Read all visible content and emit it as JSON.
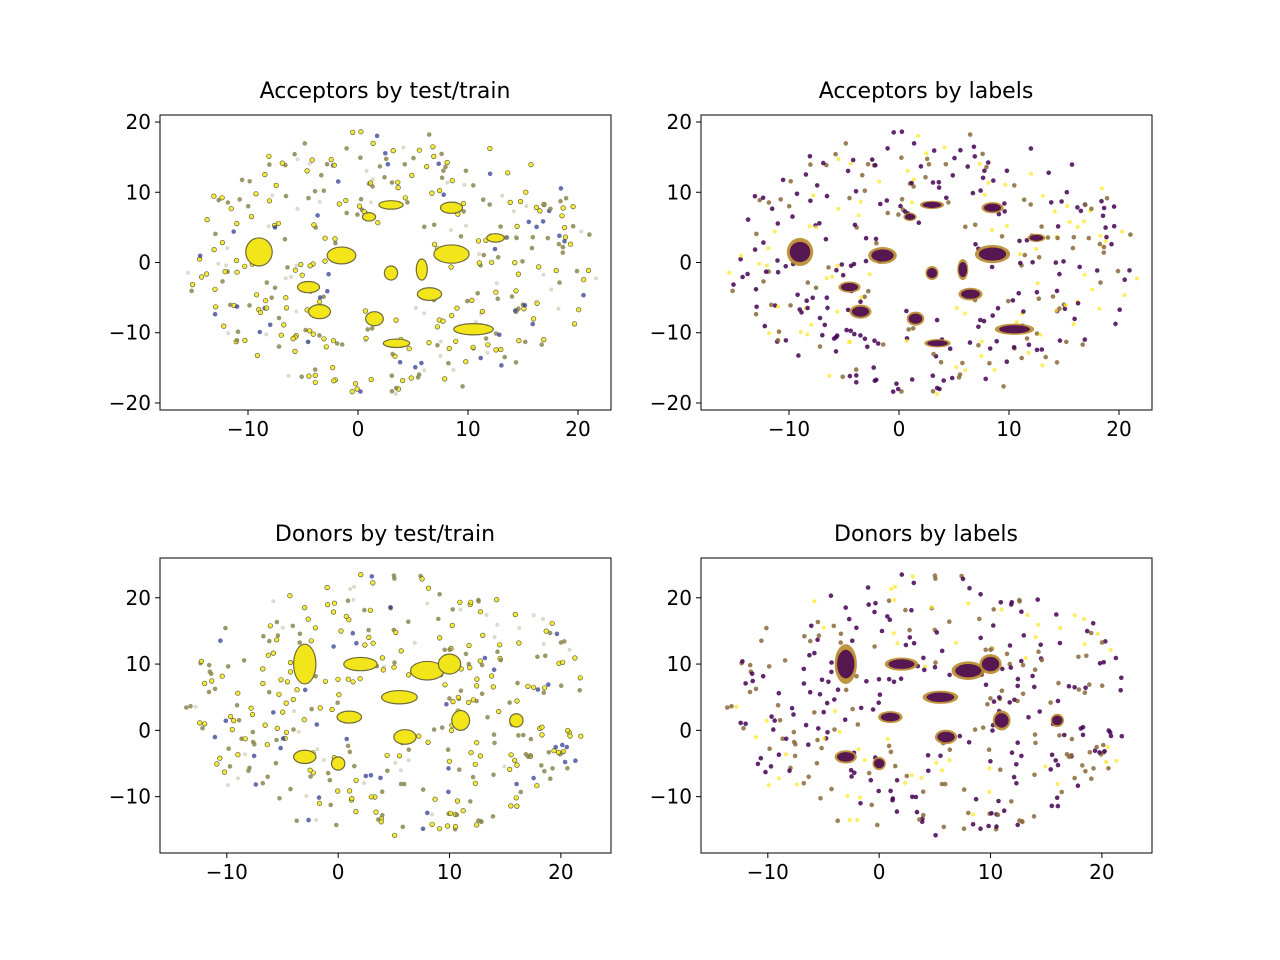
{
  "chart_data": [
    {
      "type": "scatter",
      "title": "Acceptors by test/train",
      "xlim": [
        -18,
        23
      ],
      "ylim": [
        -21,
        21
      ],
      "xticks": [
        -10,
        0,
        10,
        20
      ],
      "yticks": [
        -20,
        -10,
        0,
        10,
        20
      ],
      "tick_labels_x": [
        "−10",
        "0",
        "10",
        "20"
      ],
      "tick_labels_y": [
        "−20",
        "−10",
        "0",
        "10",
        "20"
      ],
      "colors": {
        "primary": "#f2e61a",
        "secondary": "#23308c",
        "mixed": "#8b8650",
        "edge": "#4a4a2a"
      },
      "clusters": [
        {
          "x": -9,
          "y": 1.5,
          "rx": 1.2,
          "ry": 2.0
        },
        {
          "x": -1.5,
          "y": 1,
          "rx": 1.3,
          "ry": 1.2
        },
        {
          "x": 8.5,
          "y": 1.2,
          "rx": 1.6,
          "ry": 1.3
        },
        {
          "x": -4.5,
          "y": -3.5,
          "rx": 1.0,
          "ry": 0.8
        },
        {
          "x": 6.5,
          "y": -4.5,
          "rx": 1.1,
          "ry": 0.9
        },
        {
          "x": -3.5,
          "y": -7,
          "rx": 1.0,
          "ry": 1.0
        },
        {
          "x": 1.5,
          "y": -8,
          "rx": 0.8,
          "ry": 1.0
        },
        {
          "x": 3,
          "y": 8.2,
          "rx": 1.1,
          "ry": 0.6
        },
        {
          "x": 8.5,
          "y": 7.8,
          "rx": 1.0,
          "ry": 0.8
        },
        {
          "x": 10.5,
          "y": -9.5,
          "rx": 1.8,
          "ry": 0.8
        },
        {
          "x": 3.5,
          "y": -11.5,
          "rx": 1.2,
          "ry": 0.6
        },
        {
          "x": 5.8,
          "y": -1,
          "rx": 0.5,
          "ry": 1.5
        },
        {
          "x": 12.5,
          "y": 3.5,
          "rx": 0.8,
          "ry": 0.6
        },
        {
          "x": 1,
          "y": 6.5,
          "rx": 0.6,
          "ry": 0.6
        },
        {
          "x": 3,
          "y": -1.5,
          "rx": 0.6,
          "ry": 1.0
        }
      ],
      "n_scatter": 380,
      "seed": 11,
      "mode": "testtrain"
    },
    {
      "type": "scatter",
      "title": "Acceptors by labels",
      "xlim": [
        -18,
        23
      ],
      "ylim": [
        -21,
        21
      ],
      "xticks": [
        -10,
        0,
        10,
        20
      ],
      "yticks": [
        -20,
        -10,
        0,
        10,
        20
      ],
      "tick_labels_x": [
        "−10",
        "0",
        "10",
        "20"
      ],
      "tick_labels_y": [
        "−20",
        "−10",
        "0",
        "10",
        "20"
      ],
      "colors": {
        "primary": "#fde725",
        "secondary": "#440154",
        "mixed": "#8a6a3a",
        "edge": "#b88a2a"
      },
      "clusters": [
        {
          "x": -9,
          "y": 1.5,
          "rx": 1.2,
          "ry": 2.0
        },
        {
          "x": -1.5,
          "y": 1,
          "rx": 1.3,
          "ry": 1.2
        },
        {
          "x": 8.5,
          "y": 1.2,
          "rx": 1.6,
          "ry": 1.3
        },
        {
          "x": -4.5,
          "y": -3.5,
          "rx": 1.0,
          "ry": 0.8
        },
        {
          "x": 6.5,
          "y": -4.5,
          "rx": 1.1,
          "ry": 0.9
        },
        {
          "x": -3.5,
          "y": -7,
          "rx": 1.0,
          "ry": 1.0
        },
        {
          "x": 1.5,
          "y": -8,
          "rx": 0.8,
          "ry": 1.0
        },
        {
          "x": 3,
          "y": 8.2,
          "rx": 1.1,
          "ry": 0.6
        },
        {
          "x": 8.5,
          "y": 7.8,
          "rx": 1.0,
          "ry": 0.8
        },
        {
          "x": 10.5,
          "y": -9.5,
          "rx": 1.8,
          "ry": 0.8
        },
        {
          "x": 3.5,
          "y": -11.5,
          "rx": 1.2,
          "ry": 0.6
        },
        {
          "x": 5.8,
          "y": -1,
          "rx": 0.5,
          "ry": 1.5
        },
        {
          "x": 12.5,
          "y": 3.5,
          "rx": 0.8,
          "ry": 0.6
        },
        {
          "x": 1,
          "y": 6.5,
          "rx": 0.6,
          "ry": 0.6
        },
        {
          "x": 3,
          "y": -1.5,
          "rx": 0.6,
          "ry": 1.0
        }
      ],
      "n_scatter": 380,
      "seed": 11,
      "mode": "labels"
    },
    {
      "type": "scatter",
      "title": "Donors by test/train",
      "xlim": [
        -16,
        24.5
      ],
      "ylim": [
        -18.5,
        26
      ],
      "xticks": [
        -10,
        0,
        10,
        20
      ],
      "yticks": [
        -10,
        0,
        10,
        20
      ],
      "tick_labels_x": [
        "−10",
        "0",
        "10",
        "20"
      ],
      "tick_labels_y": [
        "−10",
        "0",
        "10",
        "20"
      ],
      "colors": {
        "primary": "#f2e61a",
        "secondary": "#23308c",
        "mixed": "#8b8650",
        "edge": "#4a4a2a"
      },
      "clusters": [
        {
          "x": -3,
          "y": 10,
          "rx": 1.0,
          "ry": 3.0
        },
        {
          "x": 2,
          "y": 10,
          "rx": 1.5,
          "ry": 1.0
        },
        {
          "x": 8,
          "y": 9,
          "rx": 1.5,
          "ry": 1.4
        },
        {
          "x": 5.5,
          "y": 5,
          "rx": 1.6,
          "ry": 1.0
        },
        {
          "x": 1,
          "y": 2,
          "rx": 1.1,
          "ry": 0.9
        },
        {
          "x": 6,
          "y": -1,
          "rx": 1.0,
          "ry": 1.1
        },
        {
          "x": 11,
          "y": 1.5,
          "rx": 0.8,
          "ry": 1.5
        },
        {
          "x": 16,
          "y": 1.5,
          "rx": 0.6,
          "ry": 1.0
        },
        {
          "x": -3,
          "y": -4,
          "rx": 1.0,
          "ry": 1.0
        },
        {
          "x": 10,
          "y": 10,
          "rx": 1.0,
          "ry": 1.5
        },
        {
          "x": 0,
          "y": -5,
          "rx": 0.6,
          "ry": 1.0
        }
      ],
      "n_scatter": 380,
      "seed": 29,
      "mode": "testtrain"
    },
    {
      "type": "scatter",
      "title": "Donors by labels",
      "xlim": [
        -16,
        24.5
      ],
      "ylim": [
        -18.5,
        26
      ],
      "xticks": [
        -10,
        0,
        10,
        20
      ],
      "yticks": [
        -10,
        0,
        10,
        20
      ],
      "tick_labels_x": [
        "−10",
        "0",
        "10",
        "20"
      ],
      "tick_labels_y": [
        "−10",
        "0",
        "10",
        "20"
      ],
      "colors": {
        "primary": "#fde725",
        "secondary": "#440154",
        "mixed": "#8a6a3a",
        "edge": "#b88a2a"
      },
      "clusters": [
        {
          "x": -3,
          "y": 10,
          "rx": 1.0,
          "ry": 3.0
        },
        {
          "x": 2,
          "y": 10,
          "rx": 1.5,
          "ry": 1.0
        },
        {
          "x": 8,
          "y": 9,
          "rx": 1.5,
          "ry": 1.4
        },
        {
          "x": 5.5,
          "y": 5,
          "rx": 1.6,
          "ry": 1.0
        },
        {
          "x": 1,
          "y": 2,
          "rx": 1.1,
          "ry": 0.9
        },
        {
          "x": 6,
          "y": -1,
          "rx": 1.0,
          "ry": 1.1
        },
        {
          "x": 11,
          "y": 1.5,
          "rx": 0.8,
          "ry": 1.5
        },
        {
          "x": 16,
          "y": 1.5,
          "rx": 0.6,
          "ry": 1.0
        },
        {
          "x": -3,
          "y": -4,
          "rx": 1.0,
          "ry": 1.0
        },
        {
          "x": 10,
          "y": 10,
          "rx": 1.0,
          "ry": 1.5
        },
        {
          "x": 0,
          "y": -5,
          "rx": 0.6,
          "ry": 1.0
        }
      ],
      "n_scatter": 380,
      "seed": 29,
      "mode": "labels"
    }
  ]
}
